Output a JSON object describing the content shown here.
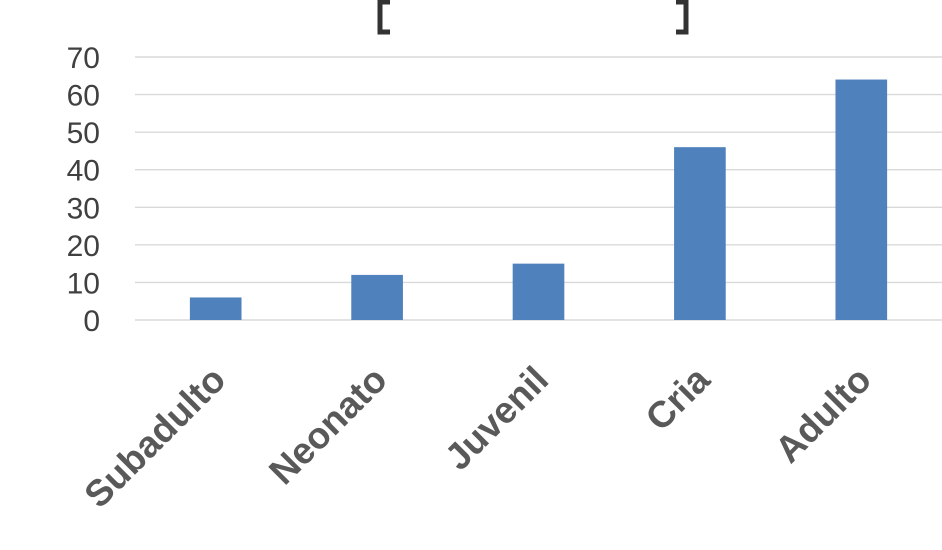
{
  "chart_data": {
    "type": "bar",
    "title": "",
    "xlabel": "",
    "ylabel": "",
    "categories": [
      "Subadulto",
      "Neonato",
      "Juvenil",
      "Cria",
      "Adulto"
    ],
    "series": [
      {
        "values": [
          6,
          12,
          15,
          46,
          64
        ],
        "color": "#4f81bd"
      }
    ],
    "ylim": [
      0,
      70
    ],
    "yticks": [
      0,
      10,
      20,
      30,
      40,
      50,
      60,
      70
    ],
    "grid": true,
    "legend": "none",
    "x_tick_rotation_deg": -45
  }
}
